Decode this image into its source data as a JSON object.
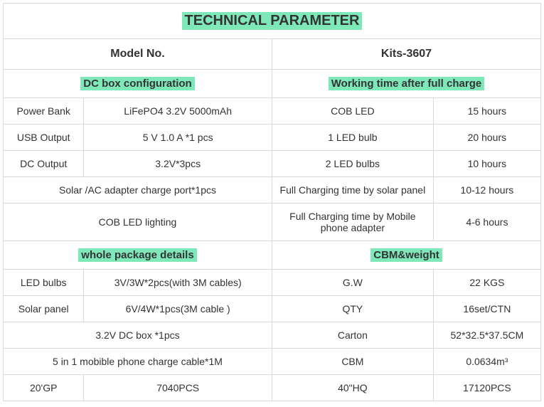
{
  "title": "TECHNICAL PARAMETER",
  "header": {
    "left": "Model No.",
    "right": "Kits-3607"
  },
  "section1": {
    "left": "DC box configuration",
    "right": "Working time after full charge"
  },
  "rows1": [
    {
      "l1": "Power Bank",
      "l2": "LiFePO4 3.2V 5000mAh",
      "r1": "COB LED",
      "r2": "15 hours"
    },
    {
      "l1": "USB Output",
      "l2": "5 V 1.0 A *1 pcs",
      "r1": "1 LED bulb",
      "r2": "20 hours"
    },
    {
      "l1": "DC Output",
      "l2": "3.2V*3pcs",
      "r1": "2 LED bulbs",
      "r2": "10 hours"
    },
    {
      "lmerged": "Solar /AC adapter charge port*1pcs",
      "r1": "Full Charging time by solar panel",
      "r2": "10-12 hours"
    },
    {
      "lmerged": "COB LED lighting",
      "r1": "Full Charging time by Mobile phone adapter",
      "r2": "4-6 hours"
    }
  ],
  "section2": {
    "left": "whole package details",
    "right": "CBM&weight"
  },
  "rows2": [
    {
      "l1": "LED bulbs",
      "l2": "3V/3W*2pcs(with 3M cables)",
      "r1": "G.W",
      "r2": "22 KGS"
    },
    {
      "l1": "Solar panel",
      "l2": "6V/4W*1pcs(3M cable )",
      "r1": "QTY",
      "r2": "16set/CTN"
    },
    {
      "lmerged": "3.2V DC box *1pcs",
      "r1": "Carton",
      "r2": "52*32.5*37.5CM"
    },
    {
      "lmerged": "5 in 1 mobible phone charge cable*1M",
      "r1": "CBM",
      "r2": "0.0634m³"
    },
    {
      "l1": "20'GP",
      "l2": "7040PCS",
      "r1": "40\"HQ",
      "r2": "17120PCS"
    }
  ],
  "colors": {
    "highlight": "#7fe8b9",
    "border": "#d9d9d9",
    "text": "#333333",
    "background": "#ffffff"
  }
}
